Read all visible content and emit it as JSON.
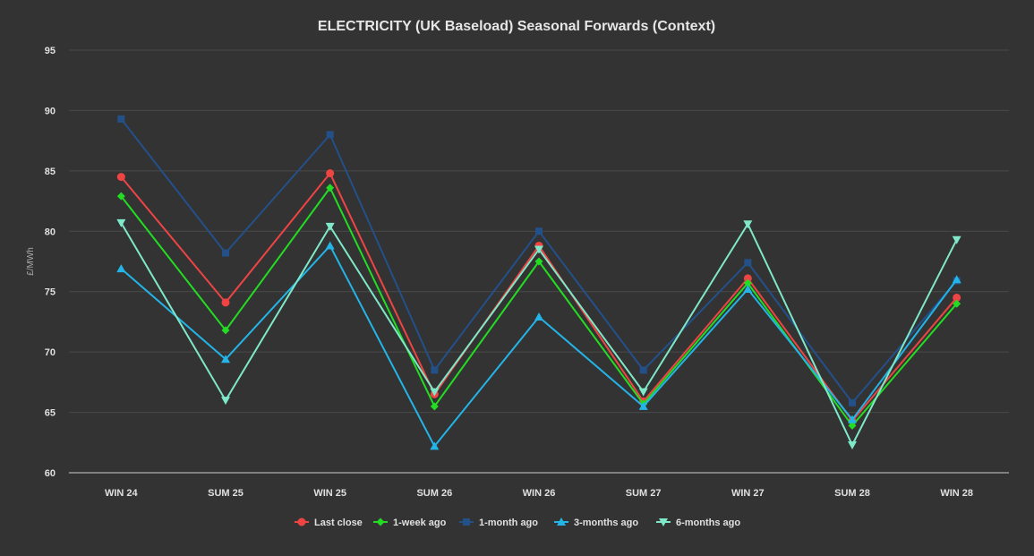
{
  "chart_data": {
    "type": "line",
    "title": "ELECTRICITY (UK Baseload) Seasonal Forwards (Context)",
    "ylabel": "£/MWh",
    "xlabel": "",
    "ylim": [
      60,
      95
    ],
    "yticks": [
      60,
      65,
      70,
      75,
      80,
      85,
      90,
      95
    ],
    "grid": true,
    "legend_position": "bottom",
    "categories": [
      "WIN 24",
      "SUM 25",
      "WIN 25",
      "SUM 26",
      "WIN 26",
      "SUM 27",
      "WIN 27",
      "SUM 28",
      "WIN 28"
    ],
    "series": [
      {
        "name": "Last close",
        "color": "#ef4444",
        "marker": "circle",
        "values": [
          84.5,
          74.1,
          84.8,
          66.5,
          78.8,
          65.9,
          76.1,
          64.3,
          74.5
        ]
      },
      {
        "name": "1-week ago",
        "color": "#22dd22",
        "marker": "diamond",
        "values": [
          82.9,
          71.8,
          83.6,
          65.5,
          77.5,
          65.7,
          75.7,
          63.9,
          74.0
        ]
      },
      {
        "name": "1-month ago",
        "color": "#24508a",
        "marker": "square",
        "values": [
          89.3,
          78.2,
          88.0,
          68.5,
          80.0,
          68.5,
          77.4,
          65.8,
          75.9
        ]
      },
      {
        "name": "3-months ago",
        "color": "#23b5e8",
        "marker": "triangle",
        "values": [
          76.9,
          69.4,
          78.8,
          62.2,
          72.9,
          65.5,
          75.2,
          64.4,
          76.0
        ]
      },
      {
        "name": "6-months ago",
        "color": "#7ee8c8",
        "marker": "triangle-down",
        "values": [
          80.7,
          66.0,
          80.4,
          66.7,
          78.5,
          66.7,
          80.6,
          62.3,
          79.3
        ]
      }
    ]
  }
}
